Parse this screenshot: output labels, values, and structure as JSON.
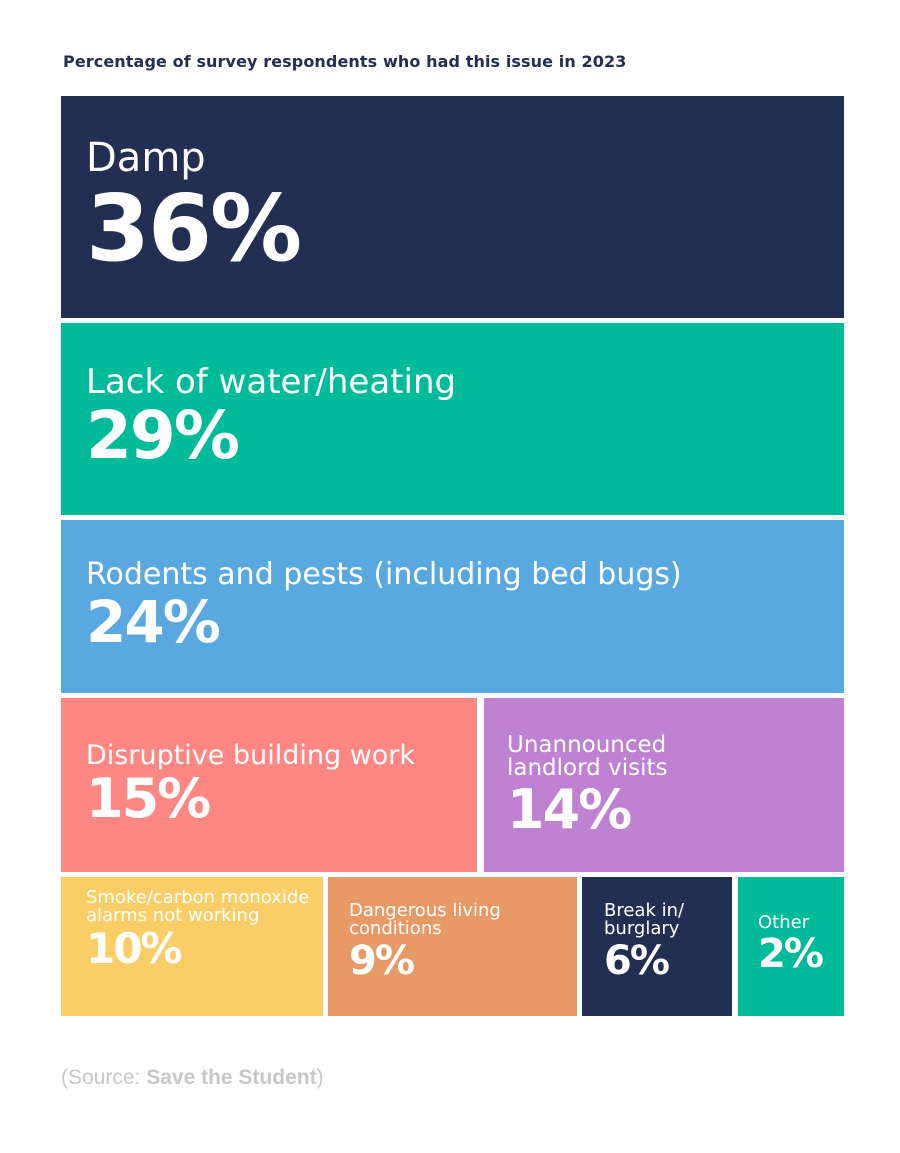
{
  "chart_data": {
    "type": "treemap",
    "title": "Percentage of survey respondents who had this issue in 2023",
    "unit": "%",
    "items": [
      {
        "label": "Damp",
        "value": 36,
        "display": "36%",
        "color": "#232f52"
      },
      {
        "label": "Lack of water/heating",
        "value": 29,
        "display": "29%",
        "color": "#00bb9a"
      },
      {
        "label": "Rodents and pests (including bed bugs)",
        "value": 24,
        "display": "24%",
        "color": "#5aa8e0"
      },
      {
        "label": "Disruptive building work",
        "value": 15,
        "display": "15%",
        "color": "#ff8783"
      },
      {
        "label": "Unannounced landlord visits",
        "value": 14,
        "display": "14%",
        "color": "#bf81d1"
      },
      {
        "label": "Smoke/carbon monoxide alarms not working",
        "value": 10,
        "display": "10%",
        "color": "#f9ce67"
      },
      {
        "label": "Dangerous living conditions",
        "value": 9,
        "display": "9%",
        "color": "#e89a66"
      },
      {
        "label": "Break in/ burglary",
        "value": 6,
        "display": "6%",
        "color": "#232f52"
      },
      {
        "label": "Other",
        "value": 2,
        "display": "2%",
        "color": "#00bb9a"
      }
    ]
  },
  "source": {
    "prefix": "(Source: ",
    "name": "Save the Student",
    "suffix": ")"
  }
}
